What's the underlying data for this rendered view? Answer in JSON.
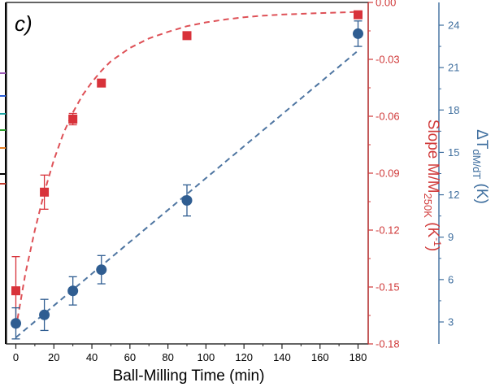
{
  "chart_data": {
    "type": "scatter",
    "panel_label": "c)",
    "xlabel": "Ball-Milling Time (min)",
    "xlim": [
      -5,
      187
    ],
    "xticks": [
      0,
      20,
      40,
      60,
      80,
      100,
      120,
      140,
      160,
      180
    ],
    "left_axis": {
      "label_main": "Slope M/M",
      "label_sub": "250K",
      "label_unit": " (K",
      "label_sup": "-1",
      "label_end": ")",
      "ylim": [
        -0.18,
        0.0
      ],
      "ticks": [
        -0.18,
        -0.15,
        -0.12,
        -0.09,
        -0.06,
        -0.03,
        0.0
      ],
      "tick_labels": [
        "-0.18",
        "-0.15",
        "-0.12",
        "-0.09",
        "-0.06",
        "-0.03",
        "0.00"
      ],
      "color": "#d03a3a"
    },
    "right_axis": {
      "label_main": "ΔT",
      "label_sub": "dM/dT",
      "label_end": " (K)",
      "ylim": [
        1.4,
        25.2
      ],
      "ticks": [
        3,
        6,
        9,
        12,
        15,
        18,
        21,
        24
      ],
      "tick_labels": [
        "3",
        "6",
        "9",
        "12",
        "15",
        "18",
        "21",
        "24"
      ],
      "color": "#3e6e9e"
    },
    "series": [
      {
        "axis": "left",
        "marker": "square",
        "color": "#d8323a",
        "x": [
          0,
          15,
          30,
          45,
          90,
          180
        ],
        "y": [
          -0.152,
          -0.1,
          -0.0615,
          -0.0425,
          -0.0175,
          -0.0065
        ],
        "yerr": [
          0.018,
          0.009,
          0.003,
          0.0015,
          0.001,
          0.0008
        ],
        "fit": {
          "style": "dashed",
          "x": [
            0,
            5,
            10,
            15,
            20,
            25,
            30,
            35,
            40,
            45,
            50,
            60,
            70,
            80,
            90,
            100,
            110,
            120,
            130,
            140,
            150,
            160,
            170,
            180
          ],
          "y": [
            -0.172,
            -0.143,
            -0.12,
            -0.1,
            -0.083,
            -0.069,
            -0.058,
            -0.049,
            -0.042,
            -0.036,
            -0.031,
            -0.024,
            -0.019,
            -0.0155,
            -0.0125,
            -0.0105,
            -0.009,
            -0.0078,
            -0.007,
            -0.0064,
            -0.006,
            -0.0056,
            -0.0053,
            -0.005
          ]
        }
      },
      {
        "axis": "right",
        "marker": "circle",
        "color": "#2f5d91",
        "x": [
          0,
          15,
          30,
          45,
          90,
          180
        ],
        "y": [
          2.9,
          3.5,
          5.2,
          6.7,
          11.6,
          23.4
        ],
        "yerr": [
          1.1,
          1.1,
          1.0,
          1.0,
          1.1,
          0.9
        ],
        "fit": {
          "style": "dashed",
          "x": [
            0,
            180
          ],
          "y": [
            1.9,
            22.2
          ]
        }
      }
    ]
  }
}
